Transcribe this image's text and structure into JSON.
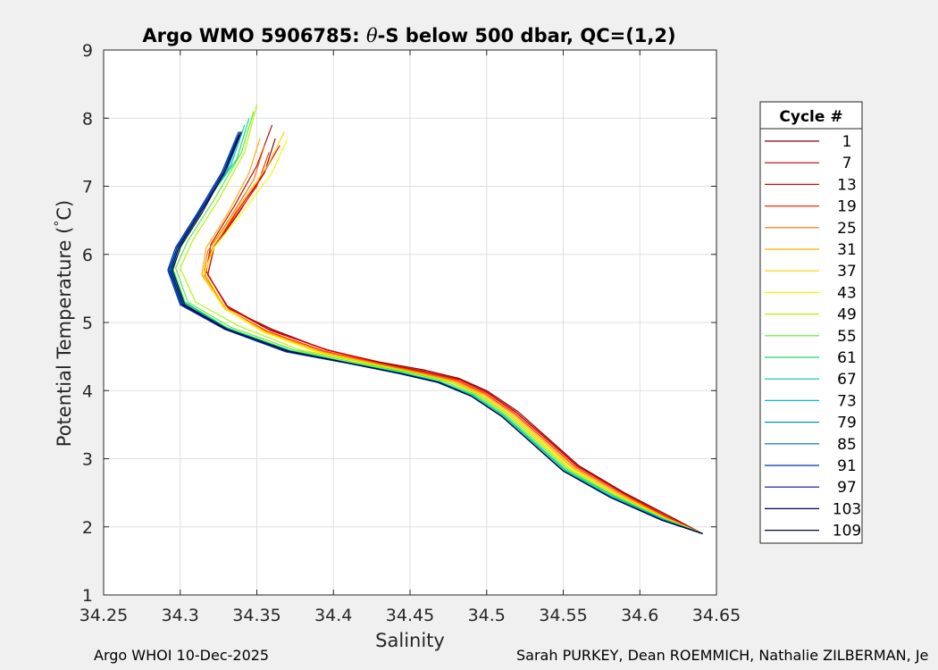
{
  "chart_data": {
    "type": "line",
    "title_parts": {
      "prefix": "Argo WMO 5906785: ",
      "theta": "θ",
      "suffix": "-S below 500 dbar,  QC=(1,2)"
    },
    "xlabel": "Salinity",
    "ylabel_parts": {
      "prefix": "Potential Temperature (",
      "degree": "°",
      "suffix": "C)"
    },
    "xlim": [
      34.25,
      34.65
    ],
    "ylim": [
      1,
      9
    ],
    "xticks": [
      34.25,
      34.3,
      34.35,
      34.4,
      34.45,
      34.5,
      34.55,
      34.6,
      34.65
    ],
    "xtick_labels": [
      "34.25",
      "34.3",
      "34.35",
      "34.4",
      "34.45",
      "34.5",
      "34.55",
      "34.6",
      "34.65"
    ],
    "yticks": [
      1,
      2,
      3,
      4,
      5,
      6,
      7,
      8,
      9
    ],
    "ytick_labels": [
      "1",
      "2",
      "3",
      "4",
      "5",
      "6",
      "7",
      "8",
      "9"
    ],
    "grid": true,
    "legend_placement": "outside-right",
    "legend_title": "Cycle #",
    "series": [
      {
        "name": "1",
        "color": "#800000",
        "x": [
          34.362,
          34.355,
          34.338,
          34.322,
          34.318,
          34.332,
          34.36,
          34.395,
          34.43,
          34.46,
          34.482,
          34.5,
          34.52,
          34.54,
          34.56,
          34.59,
          34.62,
          34.641
        ],
        "y": [
          7.7,
          7.2,
          6.6,
          6.1,
          5.7,
          5.2,
          4.9,
          4.6,
          4.42,
          4.3,
          4.18,
          4.0,
          3.7,
          3.3,
          2.9,
          2.5,
          2.15,
          1.9
        ]
      },
      {
        "name": "7",
        "color": "#b40000",
        "x": [
          34.36,
          34.35,
          34.335,
          34.32,
          34.317,
          34.33,
          34.358,
          34.395,
          34.43,
          34.46,
          34.482,
          34.5,
          34.519,
          34.539,
          34.559,
          34.589,
          34.619,
          34.641
        ],
        "y": [
          7.9,
          7.3,
          6.7,
          6.15,
          5.75,
          5.25,
          4.9,
          4.6,
          4.41,
          4.28,
          4.17,
          3.98,
          3.69,
          3.3,
          2.9,
          2.5,
          2.14,
          1.9
        ]
      },
      {
        "name": "13",
        "color": "#e60000",
        "x": [
          34.365,
          34.352,
          34.336,
          34.322,
          34.318,
          34.331,
          34.359,
          34.396,
          34.431,
          34.461,
          34.482,
          34.5,
          34.519,
          34.539,
          34.559,
          34.589,
          34.619,
          34.641
        ],
        "y": [
          7.6,
          7.1,
          6.6,
          6.1,
          5.7,
          5.22,
          4.88,
          4.6,
          4.4,
          4.27,
          4.16,
          3.97,
          3.68,
          3.29,
          2.89,
          2.49,
          2.14,
          1.9
        ]
      },
      {
        "name": "19",
        "color": "#ff2a00",
        "x": [
          34.358,
          34.35,
          34.334,
          34.32,
          34.316,
          34.33,
          34.357,
          34.394,
          34.43,
          34.46,
          34.481,
          34.499,
          34.518,
          34.538,
          34.558,
          34.588,
          34.619,
          34.641
        ],
        "y": [
          7.5,
          7.0,
          6.5,
          6.05,
          5.68,
          5.2,
          4.87,
          4.58,
          4.4,
          4.26,
          4.15,
          3.96,
          3.67,
          3.28,
          2.88,
          2.48,
          2.13,
          1.9
        ]
      },
      {
        "name": "25",
        "color": "#ff6a00",
        "x": [
          34.355,
          34.348,
          34.333,
          34.318,
          34.315,
          34.33,
          34.357,
          34.394,
          34.43,
          34.459,
          34.48,
          34.499,
          34.518,
          34.538,
          34.558,
          34.588,
          34.618,
          34.641
        ],
        "y": [
          7.6,
          7.1,
          6.55,
          6.05,
          5.68,
          5.2,
          4.86,
          4.57,
          4.39,
          4.25,
          4.14,
          3.95,
          3.66,
          3.27,
          2.87,
          2.48,
          2.13,
          1.9
        ]
      },
      {
        "name": "31",
        "color": "#ffaa00",
        "x": [
          34.352,
          34.345,
          34.331,
          34.317,
          34.314,
          34.329,
          34.356,
          34.393,
          34.429,
          34.458,
          34.479,
          34.498,
          34.517,
          34.537,
          34.557,
          34.587,
          34.618,
          34.641
        ],
        "y": [
          7.7,
          7.2,
          6.6,
          6.1,
          5.7,
          5.2,
          4.86,
          4.56,
          4.38,
          4.24,
          4.13,
          3.94,
          3.65,
          3.26,
          2.86,
          2.47,
          2.12,
          1.9
        ]
      },
      {
        "name": "37",
        "color": "#ffd200",
        "x": [
          34.368,
          34.357,
          34.338,
          34.322,
          34.316,
          34.329,
          34.355,
          34.392,
          34.428,
          34.457,
          34.478,
          34.497,
          34.516,
          34.536,
          34.556,
          34.586,
          34.617,
          34.641
        ],
        "y": [
          7.8,
          7.3,
          6.7,
          6.15,
          5.72,
          5.22,
          4.86,
          4.56,
          4.38,
          4.24,
          4.13,
          3.93,
          3.64,
          3.25,
          2.86,
          2.47,
          2.12,
          1.9
        ]
      },
      {
        "name": "43",
        "color": "#f5f500",
        "x": [
          34.37,
          34.36,
          34.34,
          34.322,
          34.315,
          34.328,
          34.354,
          34.391,
          34.427,
          34.456,
          34.477,
          34.496,
          34.515,
          34.535,
          34.555,
          34.585,
          34.617,
          34.641
        ],
        "y": [
          7.7,
          7.2,
          6.6,
          6.1,
          5.7,
          5.22,
          4.86,
          4.55,
          4.37,
          4.23,
          4.12,
          3.93,
          3.64,
          3.25,
          2.85,
          2.46,
          2.12,
          1.9
        ]
      },
      {
        "name": "49",
        "color": "#b4f000",
        "x": [
          34.35,
          34.342,
          34.325,
          34.308,
          34.3,
          34.31,
          34.338,
          34.378,
          34.418,
          34.45,
          34.474,
          34.494,
          34.514,
          34.534,
          34.554,
          34.585,
          34.617,
          34.641
        ],
        "y": [
          8.2,
          7.5,
          6.8,
          6.2,
          5.8,
          5.3,
          4.95,
          4.6,
          4.42,
          4.28,
          4.15,
          3.95,
          3.65,
          3.25,
          2.85,
          2.46,
          2.12,
          1.9
        ]
      },
      {
        "name": "55",
        "color": "#5aeb28",
        "x": [
          34.348,
          34.34,
          34.322,
          34.305,
          34.297,
          34.305,
          34.333,
          34.374,
          34.415,
          34.448,
          34.472,
          34.493,
          34.513,
          34.533,
          34.553,
          34.584,
          34.616,
          34.641
        ],
        "y": [
          8.1,
          7.5,
          6.8,
          6.2,
          5.8,
          5.3,
          4.93,
          4.6,
          4.41,
          4.27,
          4.14,
          3.94,
          3.64,
          3.24,
          2.84,
          2.45,
          2.11,
          1.9
        ]
      },
      {
        "name": "61",
        "color": "#14dc64",
        "x": [
          34.345,
          34.337,
          34.318,
          34.302,
          34.295,
          34.303,
          34.331,
          34.372,
          34.413,
          34.446,
          34.47,
          34.492,
          34.512,
          34.532,
          34.552,
          34.583,
          34.616,
          34.641
        ],
        "y": [
          8.0,
          7.4,
          6.8,
          6.2,
          5.8,
          5.3,
          4.92,
          4.59,
          4.4,
          4.26,
          4.13,
          3.93,
          3.63,
          3.23,
          2.83,
          2.45,
          2.11,
          1.9
        ]
      },
      {
        "name": "67",
        "color": "#00c8aa",
        "x": [
          34.342,
          34.333,
          34.315,
          34.3,
          34.294,
          34.302,
          34.33,
          34.37,
          34.411,
          34.444,
          34.469,
          34.491,
          34.511,
          34.531,
          34.551,
          34.582,
          34.615,
          34.641
        ],
        "y": [
          7.9,
          7.3,
          6.7,
          6.15,
          5.8,
          5.3,
          4.92,
          4.59,
          4.4,
          4.26,
          4.13,
          3.93,
          3.63,
          3.23,
          2.83,
          2.44,
          2.11,
          1.9
        ]
      },
      {
        "name": "73",
        "color": "#00b4dc",
        "x": [
          34.34,
          34.33,
          34.313,
          34.299,
          34.293,
          34.302,
          34.33,
          34.369,
          34.41,
          34.443,
          34.468,
          34.49,
          34.51,
          34.53,
          34.55,
          34.582,
          34.615,
          34.641
        ],
        "y": [
          7.8,
          7.2,
          6.65,
          6.1,
          5.78,
          5.28,
          4.9,
          4.58,
          4.4,
          4.25,
          4.12,
          3.92,
          3.62,
          3.22,
          2.82,
          2.44,
          2.11,
          1.9
        ]
      },
      {
        "name": "79",
        "color": "#0096c8",
        "x": [
          34.339,
          34.328,
          34.312,
          34.298,
          34.293,
          34.301,
          34.329,
          34.369,
          34.41,
          34.443,
          34.468,
          34.49,
          34.51,
          34.53,
          34.55,
          34.581,
          34.615,
          34.641
        ],
        "y": [
          7.8,
          7.2,
          6.6,
          6.1,
          5.78,
          5.28,
          4.9,
          4.57,
          4.4,
          4.25,
          4.12,
          3.92,
          3.62,
          3.22,
          2.82,
          2.44,
          2.11,
          1.9
        ]
      },
      {
        "name": "85",
        "color": "#0064c8",
        "x": [
          34.338,
          34.327,
          34.311,
          34.297,
          34.292,
          34.3,
          34.329,
          34.369,
          34.41,
          34.443,
          34.468,
          34.49,
          34.51,
          34.53,
          34.55,
          34.581,
          34.614,
          34.641
        ],
        "y": [
          7.8,
          7.2,
          6.6,
          6.1,
          5.78,
          5.28,
          4.9,
          4.57,
          4.4,
          4.25,
          4.12,
          3.92,
          3.62,
          3.22,
          2.82,
          2.43,
          2.1,
          1.9
        ]
      },
      {
        "name": "91",
        "color": "#0032aa",
        "x": [
          34.338,
          34.327,
          34.311,
          34.297,
          34.292,
          34.3,
          34.329,
          34.369,
          34.41,
          34.443,
          34.468,
          34.49,
          34.51,
          34.53,
          34.55,
          34.581,
          34.614,
          34.641
        ],
        "y": [
          7.75,
          7.2,
          6.6,
          6.1,
          5.76,
          5.26,
          4.9,
          4.57,
          4.4,
          4.25,
          4.12,
          3.92,
          3.62,
          3.22,
          2.82,
          2.43,
          2.1,
          1.9
        ]
      },
      {
        "name": "97",
        "color": "#00148c",
        "x": [
          34.339,
          34.328,
          34.312,
          34.298,
          34.293,
          34.301,
          34.33,
          34.37,
          34.411,
          34.444,
          34.469,
          34.49,
          34.51,
          34.53,
          34.55,
          34.581,
          34.614,
          34.641
        ],
        "y": [
          7.75,
          7.2,
          6.6,
          6.1,
          5.76,
          5.26,
          4.9,
          4.58,
          4.4,
          4.25,
          4.12,
          3.92,
          3.62,
          3.22,
          2.82,
          2.43,
          2.1,
          1.9
        ]
      },
      {
        "name": "103",
        "color": "#000050",
        "x": [
          34.339,
          34.329,
          34.313,
          34.299,
          34.294,
          34.302,
          34.33,
          34.37,
          34.411,
          34.444,
          34.469,
          34.49,
          34.51,
          34.53,
          34.55,
          34.581,
          34.614,
          34.641
        ],
        "y": [
          7.8,
          7.2,
          6.6,
          6.1,
          5.76,
          5.26,
          4.9,
          4.58,
          4.4,
          4.25,
          4.12,
          3.92,
          3.62,
          3.22,
          2.82,
          2.43,
          2.1,
          1.9
        ]
      },
      {
        "name": "109",
        "color": "#000a46",
        "x": [
          34.34,
          34.33,
          34.314,
          34.3,
          34.295,
          34.303,
          34.331,
          34.371,
          34.411,
          34.444,
          34.469,
          34.49,
          34.51,
          34.53,
          34.55,
          34.581,
          34.614,
          34.641
        ],
        "y": [
          7.8,
          7.25,
          6.6,
          6.1,
          5.76,
          5.26,
          4.9,
          4.58,
          4.4,
          4.25,
          4.12,
          3.92,
          3.62,
          3.22,
          2.82,
          2.43,
          2.1,
          1.9
        ]
      }
    ]
  },
  "footer": {
    "left": "Argo WHOI 10-Dec-2025",
    "right": "Sarah PURKEY, Dean ROEMMICH, Nathalie ZILBERMAN, Je"
  }
}
